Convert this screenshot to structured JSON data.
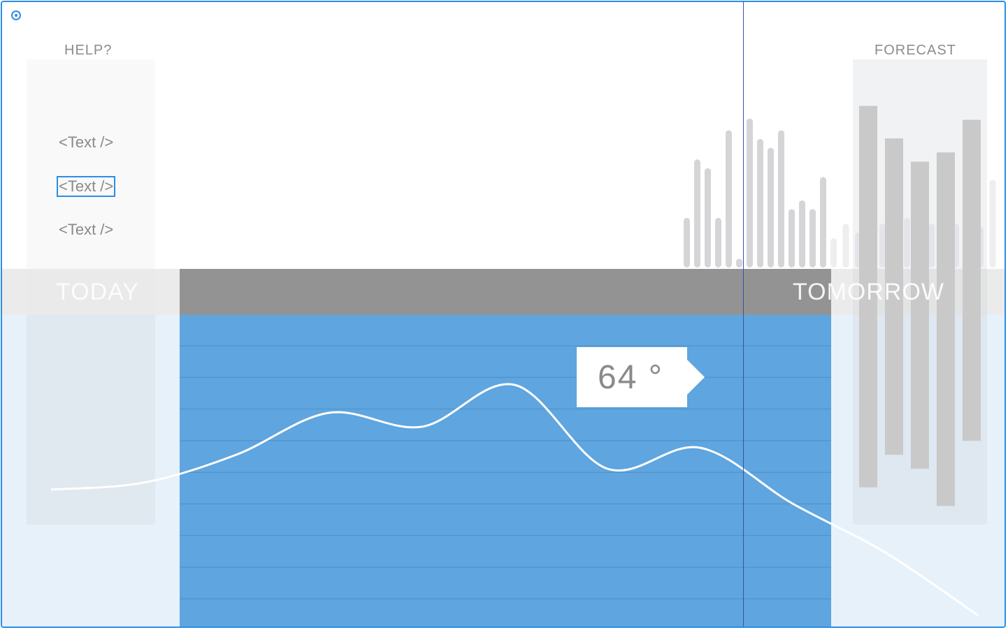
{
  "header": {
    "help_label": "HELP?",
    "forecast_label": "FORECAST"
  },
  "menu": {
    "items": [
      {
        "label": "<Text />",
        "selected": false
      },
      {
        "label": "<Text />",
        "selected": true
      },
      {
        "label": "<Text />",
        "selected": false
      }
    ]
  },
  "timeline": {
    "today_label": "TODAY",
    "tomorrow_label": "TOMORROW"
  },
  "tooltip": {
    "value": "64 °"
  },
  "colors": {
    "accent": "#2a8ee6",
    "blue_area": "#5fa5df",
    "band_dark": "#939393",
    "cursor": "#3d4fb0",
    "bar_gray": "#d5d5d8",
    "forecast_bar": "#c9c9c9"
  },
  "chart_data": [
    {
      "type": "line",
      "x": [
        0,
        1,
        2,
        3,
        4,
        5,
        6,
        7,
        8,
        9,
        10
      ],
      "y": [
        60,
        61,
        65,
        71,
        69,
        75,
        63,
        66,
        58,
        51,
        42
      ],
      "ylim": [
        40,
        85
      ],
      "grid": true
    },
    {
      "type": "bar",
      "values": [
        17,
        37,
        34,
        17,
        47,
        3,
        51,
        44,
        41,
        47,
        20,
        23,
        20,
        31
      ],
      "ylim": [
        0,
        55
      ]
    },
    {
      "type": "bar",
      "values": [
        10,
        15,
        12,
        17,
        15,
        13,
        17,
        12,
        15,
        16,
        15,
        20,
        14,
        30
      ],
      "ylim": [
        0,
        55
      ]
    },
    {
      "type": "bar",
      "values": [
        {
          "high": 90,
          "low": 8
        },
        {
          "high": 83,
          "low": 15
        },
        {
          "high": 78,
          "low": 12
        },
        {
          "high": 80,
          "low": 4
        },
        {
          "high": 87,
          "low": 18
        }
      ],
      "ylim": [
        0,
        100
      ]
    }
  ]
}
